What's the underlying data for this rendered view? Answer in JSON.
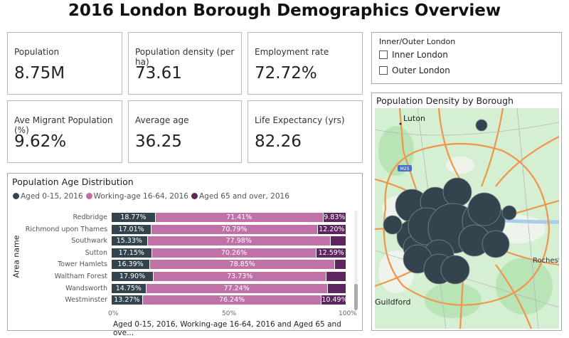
{
  "title": "2016 London Borough Demographics Overview",
  "kpis": [
    {
      "label": "Population",
      "value": "8.75M"
    },
    {
      "label": "Population density (per ha)",
      "value": "73.61"
    },
    {
      "label": "Employment rate",
      "value": "72.72%"
    },
    {
      "label": "Ave Migrant Population (%)",
      "value": "9.62%"
    },
    {
      "label": "Average age",
      "value": "36.25"
    },
    {
      "label": "Life Expectancy (yrs)",
      "value": "82.26"
    }
  ],
  "slicer": {
    "title": "Inner/Outer London",
    "options": [
      "Inner London",
      "Outer London"
    ]
  },
  "map": {
    "title": "Population Density by Borough",
    "labels": [
      "Luton",
      "M25",
      "Rochester",
      "Guildford"
    ],
    "bubble_color": "#34444f"
  },
  "chart_data": {
    "type": "bar",
    "stacked": "100%",
    "orientation": "horizontal",
    "title": "Population Age Distribution",
    "xlabel": "Aged 0-15, 2016, Working-age 16-64, 2016 and Aged 65 and ove...",
    "ylabel": "Area name",
    "xticks": [
      "0%",
      "50%",
      "100%"
    ],
    "categories": [
      "Redbridge",
      "Richmond upon Thames",
      "Southwark",
      "Sutton",
      "Tower Hamlets",
      "Waltham Forest",
      "Wandsworth",
      "Westminster"
    ],
    "series": [
      {
        "name": "Aged 0-15, 2016",
        "color": "#34444f",
        "values": [
          18.77,
          17.01,
          15.33,
          17.15,
          16.39,
          17.9,
          14.75,
          13.27
        ],
        "labels": [
          "18.77%",
          "17.01%",
          "15.33%",
          "17.15%",
          "16.39%",
          "17.90%",
          "14.75%",
          "13.27%"
        ]
      },
      {
        "name": "Working-age 16-64, 2016",
        "color": "#c072a8",
        "values": [
          71.41,
          70.79,
          77.98,
          70.26,
          78.85,
          73.73,
          77.24,
          76.24
        ],
        "labels": [
          "71.41%",
          "70.79%",
          "77.98%",
          "70.26%",
          "78.85%",
          "73.73%",
          "77.24%",
          "76.24%"
        ]
      },
      {
        "name": "Aged 65 and over, 2016",
        "color": "#5e2660",
        "values": [
          9.83,
          12.2,
          6.69,
          12.59,
          4.76,
          8.37,
          8.01,
          10.49
        ],
        "labels": [
          "9.83%",
          "12.20%",
          "",
          "12.59%",
          "",
          "",
          "",
          "10.49%"
        ]
      }
    ]
  }
}
